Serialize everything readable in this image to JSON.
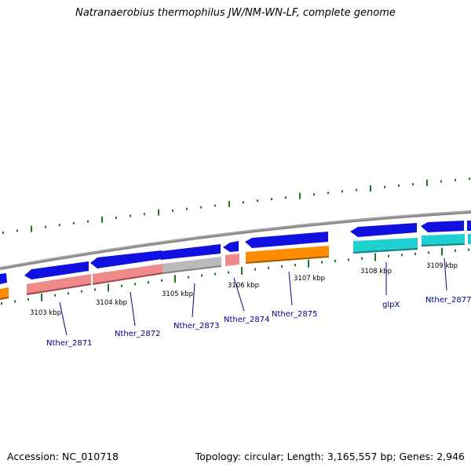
{
  "title": "Natranaerobius thermophilus JW/NM-WN-LF, complete genome",
  "footer": {
    "accession": "Accession: NC_010718",
    "stats": "Topology: circular; Length: 3,165,557 bp; Genes: 2,946"
  },
  "colors": {
    "backbone": "#8a8a8a",
    "gc_skew": "#1a7a1a",
    "cds": "#1010e0",
    "rna_salmon": "#f08a8a",
    "rna_gray": "#bbbbbb",
    "rna_orange": "#ff8c00",
    "rna_cyan": "#20d0d0",
    "label": "#00008b"
  },
  "scale": {
    "ticks": [
      {
        "label": "3103 kbp"
      },
      {
        "label": "3104 kbp"
      },
      {
        "label": "3105 kbp"
      },
      {
        "label": "3106 kbp"
      },
      {
        "label": "3107 kbp"
      },
      {
        "label": "3108 kbp"
      },
      {
        "label": "3109 kbp"
      }
    ]
  },
  "genes": [
    {
      "name": "Nther_2871"
    },
    {
      "name": "Nther_2872"
    },
    {
      "name": "Nther_2873"
    },
    {
      "name": "Nther_2874"
    },
    {
      "name": "Nther_2875"
    },
    {
      "name": "glpX"
    },
    {
      "name": "Nther_2877"
    }
  ]
}
